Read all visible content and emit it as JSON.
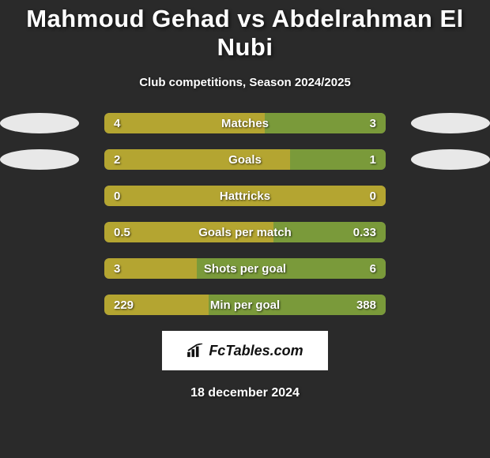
{
  "title": "Mahmoud Gehad vs Abdelrahman El Nubi",
  "subtitle": "Club competitions, Season 2024/2025",
  "date": "18 december 2024",
  "logo_text": "FcTables.com",
  "colors": {
    "left_bar": "#b4a531",
    "right_bar": "#7a9a3a",
    "track": "#6b6b6b",
    "oval": "#e8e8e8",
    "background": "#2a2a2a",
    "text": "#ffffff"
  },
  "bar_track_width": 356,
  "rows": [
    {
      "label": "Matches",
      "left_value": "4",
      "right_value": "3",
      "left_pct": 57,
      "right_pct": 43,
      "show_left_oval": true,
      "show_right_oval": true
    },
    {
      "label": "Goals",
      "left_value": "2",
      "right_value": "1",
      "left_pct": 66,
      "right_pct": 34,
      "show_left_oval": true,
      "show_right_oval": true
    },
    {
      "label": "Hattricks",
      "left_value": "0",
      "right_value": "0",
      "left_pct": 100,
      "right_pct": 0,
      "show_left_oval": false,
      "show_right_oval": false
    },
    {
      "label": "Goals per match",
      "left_value": "0.5",
      "right_value": "0.33",
      "left_pct": 60,
      "right_pct": 40,
      "show_left_oval": false,
      "show_right_oval": false
    },
    {
      "label": "Shots per goal",
      "left_value": "3",
      "right_value": "6",
      "left_pct": 33,
      "right_pct": 67,
      "show_left_oval": false,
      "show_right_oval": false
    },
    {
      "label": "Min per goal",
      "left_value": "229",
      "right_value": "388",
      "left_pct": 37,
      "right_pct": 63,
      "show_left_oval": false,
      "show_right_oval": false
    }
  ]
}
